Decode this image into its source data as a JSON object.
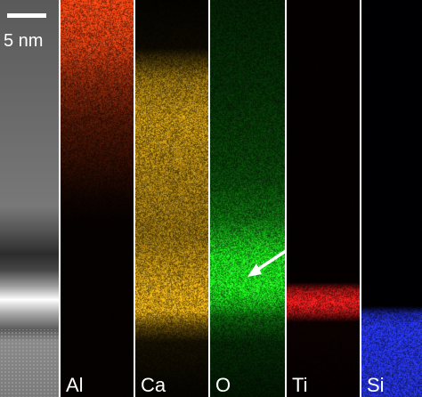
{
  "scale_bar": {
    "label": "5 nm"
  },
  "panels": [
    {
      "label": "",
      "kind": "haadf"
    },
    {
      "label": "Al",
      "color": "#ff4a14"
    },
    {
      "label": "Ca",
      "color": "#ffc21a"
    },
    {
      "label": "O",
      "color": "#22ff22"
    },
    {
      "label": "Ti",
      "color": "#ff1f1f"
    },
    {
      "label": "Si",
      "color": "#2a3aff"
    }
  ]
}
